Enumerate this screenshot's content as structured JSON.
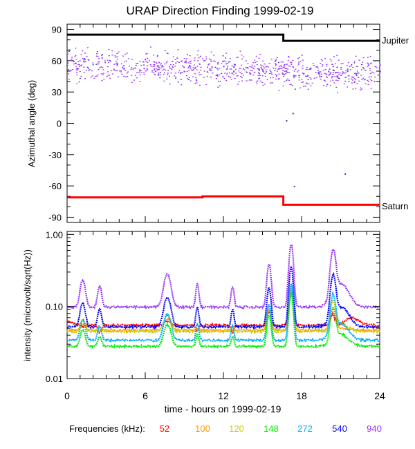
{
  "chart_data": [
    {
      "type": "scatter",
      "title": "URAP Direction Finding  1999-02-19",
      "ylabel": "Azimuthal angle (deg)",
      "ylim": [
        -95,
        95
      ],
      "xlim": [
        0,
        24
      ],
      "yticks": [
        "90",
        "60",
        "30",
        "0",
        "-30",
        "-60",
        "-90"
      ],
      "series": [
        {
          "name": "Jupiter",
          "color": "#000000",
          "x": [
            0,
            16.6,
            16.6,
            24
          ],
          "y": [
            85,
            85,
            79,
            79
          ]
        },
        {
          "name": "Saturn",
          "color": "#ff0000",
          "x": [
            0,
            10.4,
            10.4,
            16.6,
            16.6,
            24
          ],
          "y": [
            -71,
            -71,
            -70,
            -70,
            -78,
            -78
          ]
        },
        {
          "color": "#9933ff",
          "type": "scatter_band",
          "x_range": [
            0,
            24
          ],
          "center": [
            57,
            54,
            52,
            50,
            48
          ],
          "spread": 9
        }
      ],
      "outliers": [
        {
          "x": 17.3,
          "y": 10
        },
        {
          "x": 16.8,
          "y": 3
        },
        {
          "x": 17.4,
          "y": -60
        },
        {
          "x": 21.3,
          "y": -48
        }
      ]
    },
    {
      "type": "line",
      "xlabel": "time - hours on 1999-02-19",
      "ylabel": "intensity (microvolt/sqrt(Hz))",
      "yscale": "log",
      "ylim": [
        0.01,
        1.1
      ],
      "xlim": [
        0,
        24
      ],
      "xticks": [
        "0",
        "6",
        "12",
        "18",
        "24"
      ],
      "yticks": [
        "1.00",
        "0.10",
        "0.01"
      ],
      "legend_label": "Frequencies (kHz):",
      "series": [
        {
          "name": "52",
          "color": "#ff0000",
          "base": 0.055
        },
        {
          "name": "100",
          "color": "#ff9900",
          "base": 0.047
        },
        {
          "name": "120",
          "color": "#cccc00",
          "base": 0.045
        },
        {
          "name": "148",
          "color": "#00ee00",
          "base": 0.028
        },
        {
          "name": "272",
          "color": "#00aaff",
          "base": 0.034
        },
        {
          "name": "540",
          "color": "#0000ff",
          "base": 0.052
        },
        {
          "name": "940",
          "color": "#9933ff",
          "base": 0.098
        }
      ]
    }
  ],
  "labels": {
    "jupiter": "Jupiter",
    "saturn": "Saturn"
  }
}
